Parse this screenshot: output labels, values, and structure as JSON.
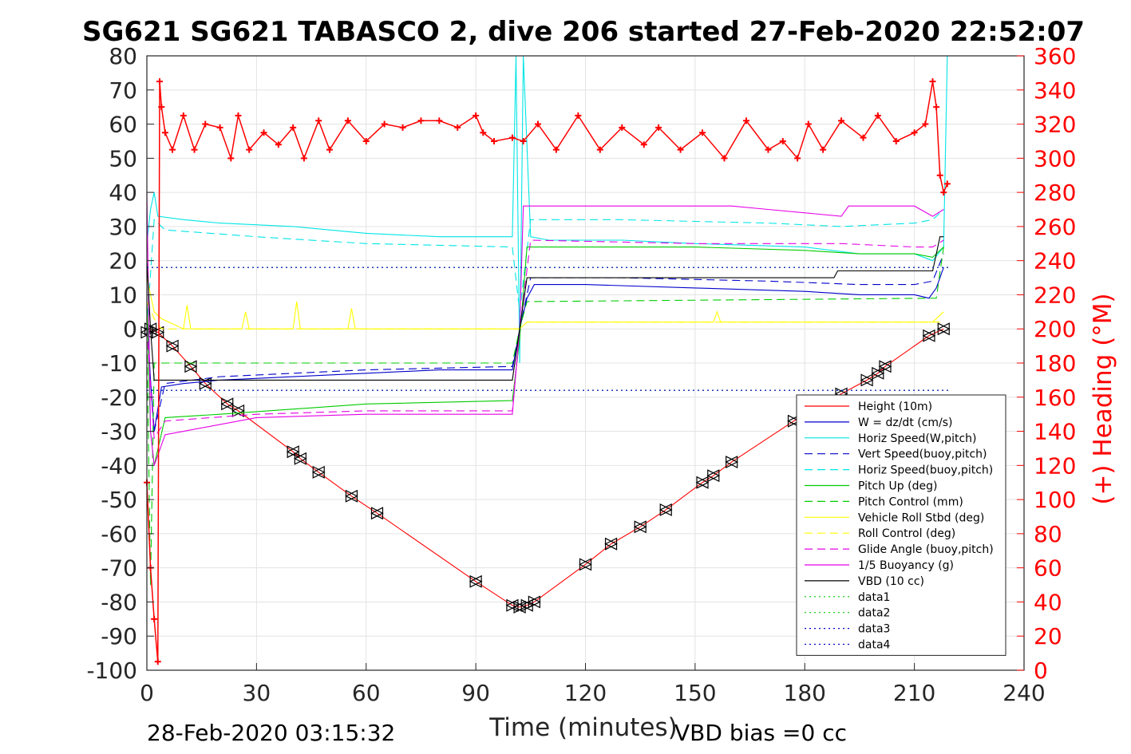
{
  "chart_data": {
    "type": "line",
    "title": "SG621 SG621 TABASCO 2, dive 206 started 27-Feb-2020 22:52:07",
    "xlabel": "Time (minutes)",
    "ylabel": "",
    "y2label": "(+) Heading (°M)",
    "xlim": [
      0,
      240
    ],
    "ylim": [
      -100,
      80
    ],
    "y2lim": [
      0,
      360
    ],
    "xticks": [
      "0",
      "30",
      "60",
      "90",
      "120",
      "150",
      "180",
      "210",
      "240"
    ],
    "yticks": [
      "80",
      "70",
      "60",
      "50",
      "40",
      "30",
      "20",
      "10",
      "0",
      "-10",
      "-20",
      "-30",
      "-40",
      "-50",
      "-60",
      "-70",
      "-80",
      "-90",
      "-100"
    ],
    "y2ticks": [
      "360",
      "340",
      "320",
      "300",
      "280",
      "260",
      "240",
      "220",
      "200",
      "180",
      "160",
      "140",
      "120",
      "100",
      "80",
      "60",
      "40",
      "20",
      "0"
    ],
    "footer_left": "28-Feb-2020 03:15:32",
    "footer_right": "VBD bias =0 cc",
    "grid": true,
    "legend_position": "bottom-right",
    "legend": [
      {
        "name": "Height (10m)",
        "color": "#ff0000",
        "dash": "solid"
      },
      {
        "name": "W = dz/dt (cm/s)",
        "color": "#0000cc",
        "dash": "solid"
      },
      {
        "name": "Horiz Speed(W,pitch)",
        "color": "#00e5e5",
        "dash": "solid"
      },
      {
        "name": "Vert Speed(buoy,pitch)",
        "color": "#0000cc",
        "dash": "dashed"
      },
      {
        "name": "Horiz Speed(buoy,pitch)",
        "color": "#00e5e5",
        "dash": "dashed"
      },
      {
        "name": "Pitch Up (deg)",
        "color": "#00cc00",
        "dash": "solid"
      },
      {
        "name": "Pitch Control (mm)",
        "color": "#00cc00",
        "dash": "dashed"
      },
      {
        "name": "Vehicle Roll Stbd (deg)",
        "color": "#ffff00",
        "dash": "solid"
      },
      {
        "name": "Roll Control (deg)",
        "color": "#ffff00",
        "dash": "dashed"
      },
      {
        "name": "Glide Angle (buoy,pitch)",
        "color": "#e600e6",
        "dash": "dashed"
      },
      {
        "name": "1/5 Buoyancy (g)",
        "color": "#e600e6",
        "dash": "solid"
      },
      {
        "name": "VBD (10 cc)",
        "color": "#000000",
        "dash": "solid"
      },
      {
        "name": "data1",
        "color": "#00cc00",
        "dash": "dotted"
      },
      {
        "name": "data2",
        "color": "#00cc00",
        "dash": "dotted"
      },
      {
        "name": "data3",
        "color": "#0000cc",
        "dash": "dotted"
      },
      {
        "name": "data4",
        "color": "#0000cc",
        "dash": "dotted"
      }
    ],
    "series": [
      {
        "name": "Height (10m)",
        "axis": "left",
        "color": "#ff0000",
        "dash": "solid",
        "x": [
          0,
          1,
          3,
          7,
          12,
          16,
          22,
          25,
          40,
          42,
          47,
          56,
          63,
          90,
          100,
          102,
          104,
          106,
          120,
          127,
          135,
          142,
          152,
          155,
          160,
          177,
          190,
          197,
          200,
          202,
          214,
          218
        ],
        "y": [
          -1,
          0,
          -1,
          -5,
          -11,
          -16,
          -22,
          -24,
          -36,
          -38,
          -42,
          -49,
          -54,
          -74,
          -81,
          -81.5,
          -81,
          -80,
          -69,
          -63,
          -58,
          -53,
          -45,
          -43,
          -39,
          -27,
          -19,
          -15,
          -13,
          -11,
          -2,
          0
        ]
      },
      {
        "name": "W = dz/dt (cm/s)",
        "axis": "left",
        "color": "#0000cc",
        "dash": "solid",
        "x": [
          0,
          1,
          2,
          4,
          10,
          20,
          40,
          60,
          80,
          100,
          102,
          104,
          106,
          120,
          150,
          180,
          195,
          210,
          214,
          216,
          218
        ],
        "y": [
          5,
          -15,
          -30,
          -17,
          -16,
          -15,
          -14,
          -13,
          -12,
          -12,
          0,
          9,
          13,
          13,
          12,
          11,
          10,
          10,
          9,
          12,
          18
        ]
      },
      {
        "name": "Horiz Speed(W,pitch)",
        "axis": "left",
        "color": "#00e5e5",
        "dash": "solid",
        "x": [
          0,
          1,
          2,
          3,
          10,
          20,
          40,
          60,
          80,
          100,
          101,
          102,
          103,
          105,
          110,
          130,
          150,
          180,
          195,
          210,
          215,
          218,
          219
        ],
        "y": [
          25,
          35,
          40,
          33,
          32,
          31,
          30,
          28,
          27,
          27,
          80,
          -10,
          80,
          27,
          26,
          26,
          25,
          24,
          22,
          22,
          20,
          24,
          80
        ]
      },
      {
        "name": "Vert Speed(buoy,pitch)",
        "axis": "left",
        "color": "#0000cc",
        "dash": "dashed",
        "x": [
          0,
          2,
          5,
          20,
          60,
          100,
          102,
          105,
          130,
          170,
          195,
          210,
          215,
          218
        ],
        "y": [
          0,
          -30,
          -16,
          -14,
          -12,
          -11,
          0,
          15,
          15,
          14,
          13,
          13,
          14,
          22
        ]
      },
      {
        "name": "Horiz Speed(buoy,pitch)",
        "axis": "left",
        "color": "#00e5e5",
        "dash": "dashed",
        "x": [
          0,
          2,
          5,
          30,
          60,
          100,
          102,
          105,
          130,
          170,
          190,
          210,
          215,
          218
        ],
        "y": [
          0,
          32,
          29,
          27,
          25,
          24,
          5,
          32,
          32,
          31,
          30,
          31,
          32,
          35
        ]
      },
      {
        "name": "Pitch Up (deg)",
        "axis": "left",
        "color": "#00cc00",
        "dash": "solid",
        "x": [
          0,
          1,
          2,
          5,
          20,
          60,
          100,
          102,
          104,
          110,
          150,
          180,
          195,
          210,
          215,
          218
        ],
        "y": [
          10,
          -30,
          -40,
          -26,
          -25,
          -22,
          -21,
          -3,
          24,
          24,
          24,
          23,
          22,
          22,
          21,
          24
        ]
      },
      {
        "name": "Pitch Control (mm)",
        "axis": "left",
        "color": "#00cc00",
        "dash": "dashed",
        "x": [
          0,
          1,
          2,
          100,
          102,
          104,
          216,
          218
        ],
        "y": [
          0,
          -75,
          -10,
          -10,
          0,
          8,
          9,
          24
        ]
      },
      {
        "name": "Vehicle Roll Stbd (deg)",
        "axis": "left",
        "color": "#ffff00",
        "dash": "solid",
        "x": [
          0,
          2,
          4,
          10,
          11,
          12,
          26,
          27,
          28,
          40,
          41,
          42,
          55,
          56,
          57,
          100,
          102,
          104,
          130,
          150,
          155,
          156,
          157,
          180,
          200,
          215,
          218
        ],
        "y": [
          15,
          5,
          3,
          0,
          7,
          0,
          0,
          5,
          0,
          0,
          8,
          0,
          0,
          6,
          0,
          0,
          0,
          2,
          2,
          2,
          2,
          5,
          2,
          2,
          2,
          2,
          5
        ]
      },
      {
        "name": "Roll Control (deg)",
        "axis": "left",
        "color": "#ffff00",
        "dash": "dashed",
        "x": [
          0,
          2,
          4,
          100,
          102,
          104,
          218
        ],
        "y": [
          8,
          3,
          0,
          0,
          0,
          2,
          2
        ]
      },
      {
        "name": "Glide Angle (buoy,pitch)",
        "axis": "left",
        "color": "#e600e6",
        "dash": "dashed",
        "x": [
          0,
          2,
          5,
          30,
          60,
          100,
          102,
          105,
          150,
          190,
          210,
          215,
          218
        ],
        "y": [
          0,
          -32,
          -27,
          -25,
          -24,
          -24,
          0,
          26,
          25,
          25,
          24,
          24,
          26
        ]
      },
      {
        "name": "1/5 Buoyancy (g)",
        "axis": "left",
        "color": "#e600e6",
        "dash": "solid",
        "x": [
          0,
          1,
          2,
          5,
          10,
          30,
          60,
          100,
          102,
          103,
          110,
          160,
          170,
          190,
          192,
          210,
          215,
          218
        ],
        "y": [
          40,
          -30,
          -40,
          -31,
          -30,
          -26,
          -25,
          -25,
          0,
          36,
          36,
          36,
          35,
          33,
          36,
          36,
          33,
          35
        ]
      },
      {
        "name": "VBD (10 cc)",
        "axis": "left",
        "color": "#000000",
        "dash": "solid",
        "x": [
          0,
          1,
          2,
          100,
          102,
          104,
          150,
          180,
          188,
          189,
          215,
          216,
          217,
          218
        ],
        "y": [
          20,
          0,
          -15,
          -15,
          0,
          15,
          15,
          15,
          15,
          17,
          17,
          22,
          27,
          27
        ]
      },
      {
        "name": "data1",
        "axis": "left",
        "color": "#00cc00",
        "dash": "dotted",
        "x": [
          0,
          220
        ],
        "y": [
          18,
          18
        ]
      },
      {
        "name": "data2",
        "axis": "left",
        "color": "#00cc00",
        "dash": "dotted",
        "x": [
          0,
          220
        ],
        "y": [
          -18,
          -18
        ]
      },
      {
        "name": "data3",
        "axis": "left",
        "color": "#0000cc",
        "dash": "dotted",
        "x": [
          0,
          220
        ],
        "y": [
          18,
          18
        ]
      },
      {
        "name": "data4",
        "axis": "left",
        "color": "#0000cc",
        "dash": "dotted",
        "x": [
          0,
          220
        ],
        "y": [
          -18,
          -18
        ]
      },
      {
        "name": "Heading",
        "axis": "right",
        "color": "#ff0000",
        "marker": "+",
        "x": [
          0,
          1,
          2,
          3,
          3.5,
          4,
          5,
          7,
          10,
          13,
          16,
          20,
          23,
          25,
          28,
          32,
          36,
          40,
          43,
          47,
          50,
          55,
          60,
          65,
          70,
          75,
          80,
          85,
          90,
          92,
          95,
          100,
          103,
          107,
          112,
          118,
          124,
          130,
          136,
          140,
          146,
          152,
          158,
          164,
          170,
          174,
          178,
          181,
          185,
          190,
          196,
          200,
          205,
          210,
          213,
          215,
          216,
          217,
          218,
          219
        ],
        "y": [
          110,
          60,
          30,
          5,
          345,
          330,
          315,
          305,
          325,
          305,
          320,
          318,
          300,
          325,
          305,
          315,
          308,
          318,
          300,
          322,
          305,
          322,
          310,
          320,
          318,
          322,
          322,
          318,
          325,
          315,
          310,
          312,
          310,
          320,
          305,
          325,
          305,
          318,
          308,
          318,
          305,
          315,
          300,
          322,
          305,
          310,
          300,
          320,
          305,
          322,
          312,
          325,
          310,
          315,
          320,
          345,
          330,
          290,
          280,
          285
        ]
      }
    ]
  }
}
